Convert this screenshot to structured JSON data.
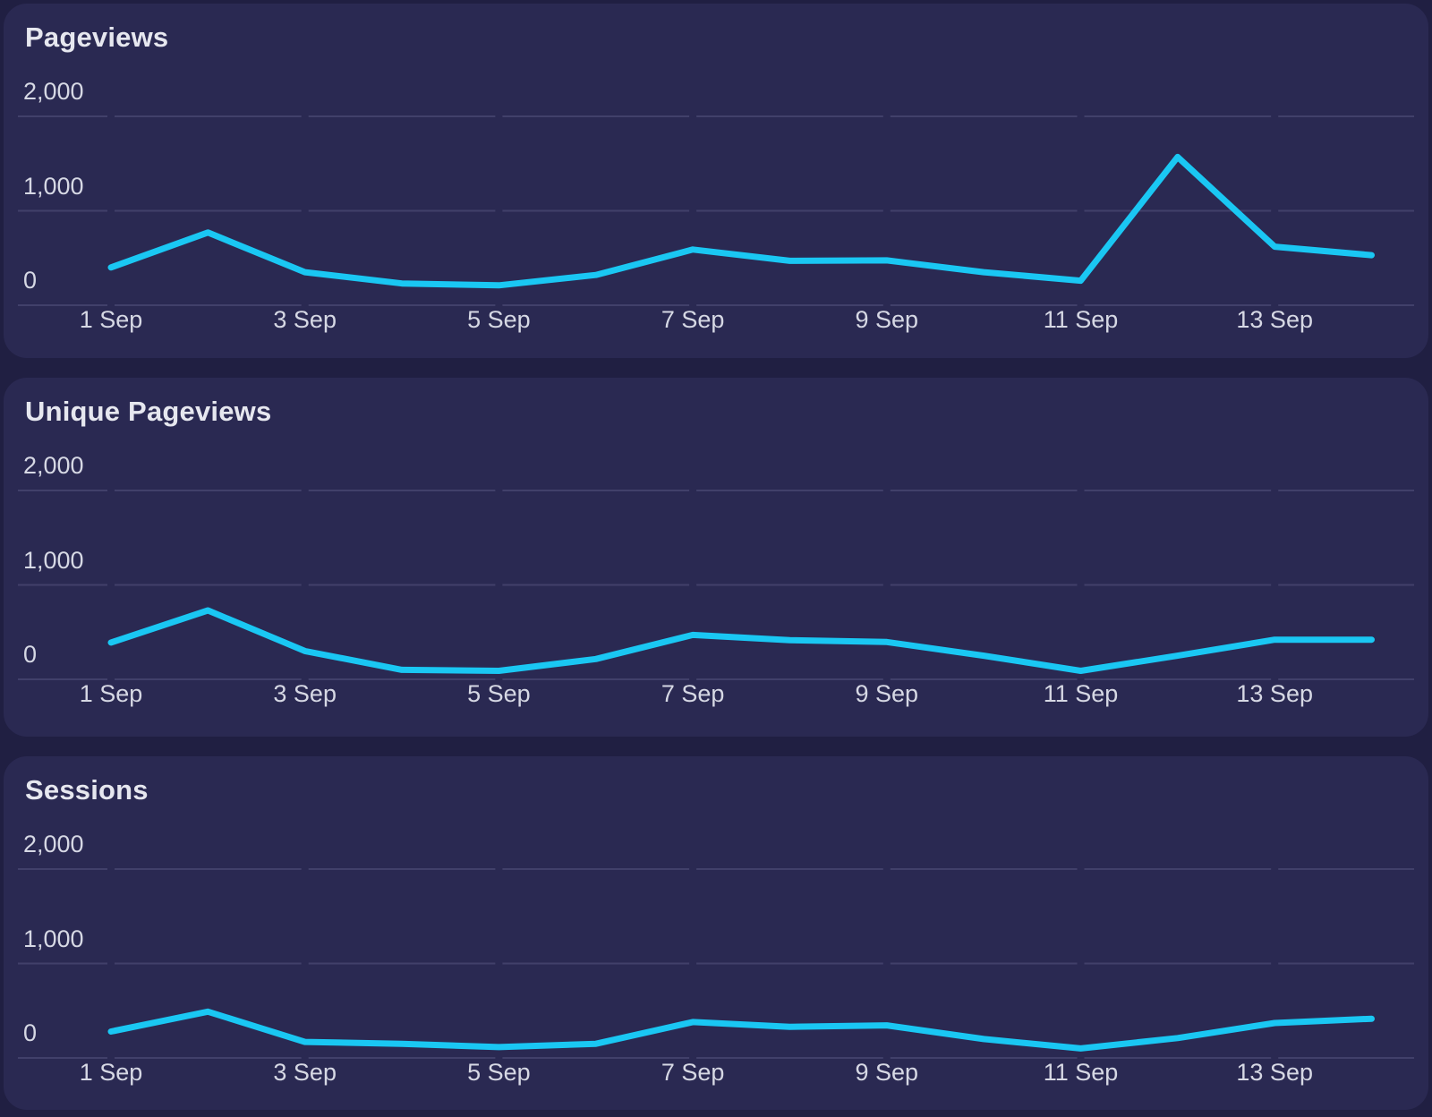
{
  "page": {
    "background_color": "#201f42",
    "panel_background_color": "#2a2952",
    "line_color": "#1ac7f3",
    "gridline_color": "#41406a",
    "title_color": "#e6e7ef",
    "tick_label_color": "#d6d8e4"
  },
  "panels": [
    {
      "title": "Pageviews"
    },
    {
      "title": "Unique Pageviews"
    },
    {
      "title": "Sessions"
    }
  ],
  "chart_data": [
    {
      "type": "line",
      "title": "Pageviews",
      "x": [
        "1 Sep",
        "2 Sep",
        "3 Sep",
        "4 Sep",
        "5 Sep",
        "6 Sep",
        "7 Sep",
        "8 Sep",
        "9 Sep",
        "10 Sep",
        "11 Sep",
        "12 Sep",
        "13 Sep",
        "14 Sep"
      ],
      "x_tick_labels": [
        "1 Sep",
        "3 Sep",
        "5 Sep",
        "7 Sep",
        "9 Sep",
        "11 Sep",
        "13 Sep"
      ],
      "y_ticks": [
        0,
        1000,
        2000
      ],
      "y_tick_labels": [
        "0",
        "1,000",
        "2,000"
      ],
      "ylim": [
        0,
        2200
      ],
      "grid": "horizontal-dashed",
      "legend": "none",
      "series": [
        {
          "name": "Pageviews",
          "values": [
            400,
            770,
            350,
            230,
            210,
            320,
            590,
            470,
            475,
            350,
            260,
            1570,
            620,
            530
          ]
        }
      ]
    },
    {
      "type": "line",
      "title": "Unique Pageviews",
      "x": [
        "1 Sep",
        "2 Sep",
        "3 Sep",
        "4 Sep",
        "5 Sep",
        "6 Sep",
        "7 Sep",
        "8 Sep",
        "9 Sep",
        "10 Sep",
        "11 Sep",
        "12 Sep",
        "13 Sep",
        "14 Sep"
      ],
      "x_tick_labels": [
        "1 Sep",
        "3 Sep",
        "5 Sep",
        "7 Sep",
        "9 Sep",
        "11 Sep",
        "13 Sep"
      ],
      "y_ticks": [
        0,
        1000,
        2000
      ],
      "y_tick_labels": [
        "0",
        "1,000",
        "2,000"
      ],
      "ylim": [
        0,
        2200
      ],
      "grid": "horizontal-dashed",
      "legend": "none",
      "series": [
        {
          "name": "Unique Pageviews",
          "values": [
            390,
            730,
            300,
            100,
            90,
            215,
            470,
            415,
            395,
            250,
            90,
            250,
            420,
            420
          ]
        }
      ]
    },
    {
      "type": "line",
      "title": "Sessions",
      "x": [
        "1 Sep",
        "2 Sep",
        "3 Sep",
        "4 Sep",
        "5 Sep",
        "6 Sep",
        "7 Sep",
        "8 Sep",
        "9 Sep",
        "10 Sep",
        "11 Sep",
        "12 Sep",
        "13 Sep",
        "14 Sep"
      ],
      "x_tick_labels": [
        "1 Sep",
        "3 Sep",
        "5 Sep",
        "7 Sep",
        "9 Sep",
        "11 Sep",
        "13 Sep"
      ],
      "y_ticks": [
        0,
        1000,
        2000
      ],
      "y_tick_labels": [
        "0",
        "1,000",
        "2,000"
      ],
      "ylim": [
        0,
        2200
      ],
      "grid": "horizontal-dashed",
      "legend": "none",
      "series": [
        {
          "name": "Sessions",
          "values": [
            280,
            490,
            170,
            150,
            115,
            150,
            380,
            330,
            345,
            200,
            100,
            210,
            370,
            415
          ]
        }
      ]
    }
  ]
}
